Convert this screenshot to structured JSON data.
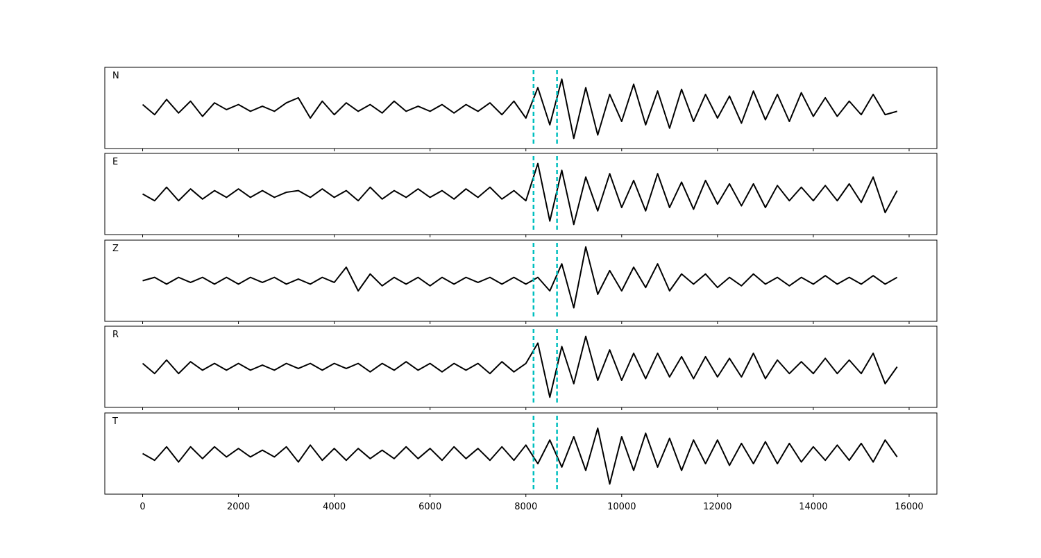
{
  "chart_data": [
    {
      "type": "line",
      "label": "N",
      "color": "#000000",
      "xlim": [
        -790,
        16580
      ],
      "ylim": [
        -1.2,
        1.2
      ],
      "xticks": [
        0,
        2000,
        4000,
        6000,
        8000,
        10000,
        12000,
        14000,
        16000
      ],
      "tick_labels": false,
      "vlines": [
        8160,
        8650
      ],
      "vline_color": "#00bfbf",
      "x": [
        0,
        250,
        500,
        750,
        1000,
        1250,
        1500,
        1750,
        2000,
        2250,
        2500,
        2750,
        3000,
        3250,
        3500,
        3750,
        4000,
        4250,
        4500,
        4750,
        5000,
        5250,
        5500,
        5750,
        6000,
        6250,
        6500,
        6750,
        7000,
        7250,
        7500,
        7750,
        8000,
        8250,
        8500,
        8750,
        9000,
        9250,
        9500,
        9750,
        10000,
        10250,
        10500,
        10750,
        11000,
        11250,
        11500,
        11750,
        12000,
        12250,
        12500,
        12750,
        13000,
        13250,
        13500,
        13750,
        14000,
        14250,
        14500,
        14750,
        15000,
        15250,
        15500,
        15750
      ],
      "values": [
        0.1,
        -0.2,
        0.25,
        -0.15,
        0.2,
        -0.25,
        0.15,
        -0.05,
        0.1,
        -0.1,
        0.05,
        -0.1,
        0.15,
        0.3,
        -0.3,
        0.2,
        -0.2,
        0.15,
        -0.1,
        0.1,
        -0.15,
        0.2,
        -0.1,
        0.05,
        -0.1,
        0.1,
        -0.15,
        0.1,
        -0.1,
        0.15,
        -0.2,
        0.2,
        -0.3,
        0.6,
        -0.5,
        0.85,
        -0.9,
        0.6,
        -0.8,
        0.4,
        -0.4,
        0.7,
        -0.5,
        0.5,
        -0.6,
        0.55,
        -0.4,
        0.4,
        -0.3,
        0.35,
        -0.45,
        0.5,
        -0.35,
        0.4,
        -0.4,
        0.45,
        -0.25,
        0.3,
        -0.25,
        0.2,
        -0.2,
        0.4,
        -0.2,
        -0.1
      ]
    },
    {
      "type": "line",
      "label": "E",
      "color": "#000000",
      "xlim": [
        -790,
        16580
      ],
      "ylim": [
        -1.2,
        1.2
      ],
      "xticks": [
        0,
        2000,
        4000,
        6000,
        8000,
        10000,
        12000,
        14000,
        16000
      ],
      "tick_labels": false,
      "vlines": [
        8160,
        8650
      ],
      "vline_color": "#00bfbf",
      "x": [
        0,
        250,
        500,
        750,
        1000,
        1250,
        1500,
        1750,
        2000,
        2250,
        2500,
        2750,
        3000,
        3250,
        3500,
        3750,
        4000,
        4250,
        4500,
        4750,
        5000,
        5250,
        5500,
        5750,
        6000,
        6250,
        6500,
        6750,
        7000,
        7250,
        7500,
        7750,
        8000,
        8250,
        8500,
        8750,
        9000,
        9250,
        9500,
        9750,
        10000,
        10250,
        10500,
        10750,
        11000,
        11250,
        11500,
        11750,
        12000,
        12250,
        12500,
        12750,
        13000,
        13250,
        13500,
        13750,
        14000,
        14250,
        14500,
        14750,
        15000,
        15250,
        15500,
        15750
      ],
      "values": [
        0.0,
        -0.2,
        0.2,
        -0.2,
        0.15,
        -0.15,
        0.1,
        -0.1,
        0.15,
        -0.1,
        0.1,
        -0.1,
        0.05,
        0.1,
        -0.1,
        0.15,
        -0.1,
        0.1,
        -0.2,
        0.2,
        -0.15,
        0.1,
        -0.1,
        0.15,
        -0.1,
        0.1,
        -0.15,
        0.15,
        -0.1,
        0.2,
        -0.15,
        0.1,
        -0.2,
        0.9,
        -0.8,
        0.7,
        -0.9,
        0.5,
        -0.5,
        0.6,
        -0.4,
        0.4,
        -0.5,
        0.6,
        -0.4,
        0.35,
        -0.45,
        0.4,
        -0.3,
        0.3,
        -0.35,
        0.3,
        -0.4,
        0.25,
        -0.2,
        0.2,
        -0.2,
        0.25,
        -0.2,
        0.3,
        -0.25,
        0.5,
        -0.55,
        0.1
      ]
    },
    {
      "type": "line",
      "label": "Z",
      "color": "#000000",
      "xlim": [
        -790,
        16580
      ],
      "ylim": [
        -1.2,
        1.2
      ],
      "xticks": [
        0,
        2000,
        4000,
        6000,
        8000,
        10000,
        12000,
        14000,
        16000
      ],
      "tick_labels": false,
      "vlines": [
        8160,
        8650
      ],
      "vline_color": "#00bfbf",
      "x": [
        0,
        250,
        500,
        750,
        1000,
        1250,
        1500,
        1750,
        2000,
        2250,
        2500,
        2750,
        3000,
        3250,
        3500,
        3750,
        4000,
        4250,
        4500,
        4750,
        5000,
        5250,
        5500,
        5750,
        6000,
        6250,
        6500,
        6750,
        7000,
        7250,
        7500,
        7750,
        8000,
        8250,
        8500,
        8750,
        9000,
        9250,
        9500,
        9750,
        10000,
        10250,
        10500,
        10750,
        11000,
        11250,
        11500,
        11750,
        12000,
        12250,
        12500,
        12750,
        13000,
        13250,
        13500,
        13750,
        14000,
        14250,
        14500,
        14750,
        15000,
        15250,
        15500,
        15750
      ],
      "values": [
        0.0,
        0.1,
        -0.1,
        0.1,
        -0.05,
        0.1,
        -0.1,
        0.1,
        -0.1,
        0.1,
        -0.05,
        0.1,
        -0.1,
        0.05,
        -0.1,
        0.1,
        -0.05,
        0.4,
        -0.3,
        0.2,
        -0.15,
        0.1,
        -0.1,
        0.1,
        -0.15,
        0.1,
        -0.1,
        0.1,
        -0.05,
        0.1,
        -0.1,
        0.1,
        -0.1,
        0.1,
        -0.3,
        0.5,
        -0.8,
        1.0,
        -0.4,
        0.3,
        -0.3,
        0.4,
        -0.2,
        0.5,
        -0.3,
        0.2,
        -0.1,
        0.2,
        -0.2,
        0.1,
        -0.15,
        0.2,
        -0.1,
        0.1,
        -0.15,
        0.1,
        -0.1,
        0.15,
        -0.1,
        0.1,
        -0.1,
        0.15,
        -0.1,
        0.1
      ]
    },
    {
      "type": "line",
      "label": "R",
      "color": "#000000",
      "xlim": [
        -790,
        16580
      ],
      "ylim": [
        -1.2,
        1.2
      ],
      "xticks": [
        0,
        2000,
        4000,
        6000,
        8000,
        10000,
        12000,
        14000,
        16000
      ],
      "tick_labels": false,
      "vlines": [
        8160,
        8650
      ],
      "vline_color": "#00bfbf",
      "x": [
        0,
        250,
        500,
        750,
        1000,
        1250,
        1500,
        1750,
        2000,
        2250,
        2500,
        2750,
        3000,
        3250,
        3500,
        3750,
        4000,
        4250,
        4500,
        4750,
        5000,
        5250,
        5500,
        5750,
        6000,
        6250,
        6500,
        6750,
        7000,
        7250,
        7500,
        7750,
        8000,
        8250,
        8500,
        8750,
        9000,
        9250,
        9500,
        9750,
        10000,
        10250,
        10500,
        10750,
        11000,
        11250,
        11500,
        11750,
        12000,
        12250,
        12500,
        12750,
        13000,
        13250,
        13500,
        13750,
        14000,
        14250,
        14500,
        14750,
        15000,
        15250,
        15500,
        15750
      ],
      "values": [
        0.1,
        -0.2,
        0.2,
        -0.2,
        0.15,
        -0.1,
        0.1,
        -0.1,
        0.1,
        -0.1,
        0.05,
        -0.1,
        0.1,
        -0.05,
        0.1,
        -0.1,
        0.1,
        -0.05,
        0.1,
        -0.15,
        0.1,
        -0.1,
        0.15,
        -0.1,
        0.1,
        -0.15,
        0.1,
        -0.1,
        0.1,
        -0.2,
        0.15,
        -0.15,
        0.1,
        0.7,
        -0.9,
        0.6,
        -0.5,
        0.9,
        -0.4,
        0.5,
        -0.4,
        0.4,
        -0.35,
        0.4,
        -0.3,
        0.3,
        -0.35,
        0.3,
        -0.3,
        0.25,
        -0.3,
        0.4,
        -0.35,
        0.2,
        -0.2,
        0.15,
        -0.2,
        0.25,
        -0.2,
        0.2,
        -0.2,
        0.4,
        -0.5,
        0.0
      ]
    },
    {
      "type": "line",
      "label": "T",
      "color": "#000000",
      "xlim": [
        -790,
        16580
      ],
      "ylim": [
        -1.2,
        1.2
      ],
      "xticks": [
        0,
        2000,
        4000,
        6000,
        8000,
        10000,
        12000,
        14000,
        16000
      ],
      "tick_labels": true,
      "vlines": [
        8160,
        8650
      ],
      "vline_color": "#00bfbf",
      "x": [
        0,
        250,
        500,
        750,
        1000,
        1250,
        1500,
        1750,
        2000,
        2250,
        2500,
        2750,
        3000,
        3250,
        3500,
        3750,
        4000,
        4250,
        4500,
        4750,
        5000,
        5250,
        5500,
        5750,
        6000,
        6250,
        6500,
        6750,
        7000,
        7250,
        7500,
        7750,
        8000,
        8250,
        8500,
        8750,
        9000,
        9250,
        9500,
        9750,
        10000,
        10250,
        10500,
        10750,
        11000,
        11250,
        11500,
        11750,
        12000,
        12250,
        12500,
        12750,
        13000,
        13250,
        13500,
        13750,
        14000,
        14250,
        14500,
        14750,
        15000,
        15250,
        15500,
        15750
      ],
      "values": [
        0.0,
        -0.2,
        0.2,
        -0.25,
        0.2,
        -0.15,
        0.2,
        -0.1,
        0.15,
        -0.1,
        0.1,
        -0.1,
        0.2,
        -0.25,
        0.25,
        -0.2,
        0.15,
        -0.2,
        0.15,
        -0.15,
        0.1,
        -0.15,
        0.2,
        -0.15,
        0.15,
        -0.2,
        0.2,
        -0.15,
        0.15,
        -0.2,
        0.2,
        -0.2,
        0.25,
        -0.3,
        0.4,
        -0.4,
        0.5,
        -0.5,
        0.75,
        -0.9,
        0.5,
        -0.5,
        0.6,
        -0.4,
        0.45,
        -0.5,
        0.4,
        -0.3,
        0.4,
        -0.35,
        0.3,
        -0.3,
        0.35,
        -0.3,
        0.3,
        -0.25,
        0.2,
        -0.2,
        0.25,
        -0.2,
        0.3,
        -0.25,
        0.4,
        -0.1
      ]
    }
  ]
}
